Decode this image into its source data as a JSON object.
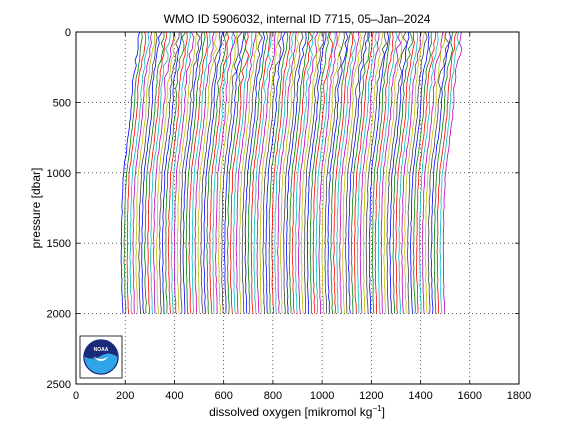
{
  "chart_data": {
    "type": "line",
    "title": "WMO ID 5906032, internal ID 7715, 05–Jan–2024",
    "xlabel": "dissolved oxygen [mikromol kg",
    "xlabel_sup": "−1",
    "xlabel_end": "]",
    "ylabel": "pressure [dbar]",
    "xlim": [
      0,
      1800
    ],
    "ylim": [
      0,
      2500
    ],
    "y_reversed": true,
    "grid": true,
    "x_ticks": [
      0,
      200,
      400,
      600,
      800,
      1000,
      1200,
      1400,
      1600,
      1800
    ],
    "y_ticks": [
      0,
      500,
      1000,
      1500,
      2000,
      2500
    ],
    "series_colors": [
      "#0000ff",
      "#008000",
      "#ff0000",
      "#00bfbf",
      "#bf00bf",
      "#bfbf00",
      "#404040"
    ],
    "profile_count": 110,
    "offset_step": 12,
    "base_profile": {
      "pressure": [
        0,
        50,
        100,
        150,
        200,
        300,
        400,
        500,
        600,
        700,
        800,
        900,
        1000,
        1200,
        1400,
        1600,
        1800,
        2000
      ],
      "oxygen": [
        258,
        258,
        255,
        250,
        245,
        235,
        228,
        226,
        222,
        215,
        208,
        200,
        193,
        188,
        185,
        184,
        186,
        190
      ]
    }
  },
  "logo": {
    "text": "NOAA"
  }
}
